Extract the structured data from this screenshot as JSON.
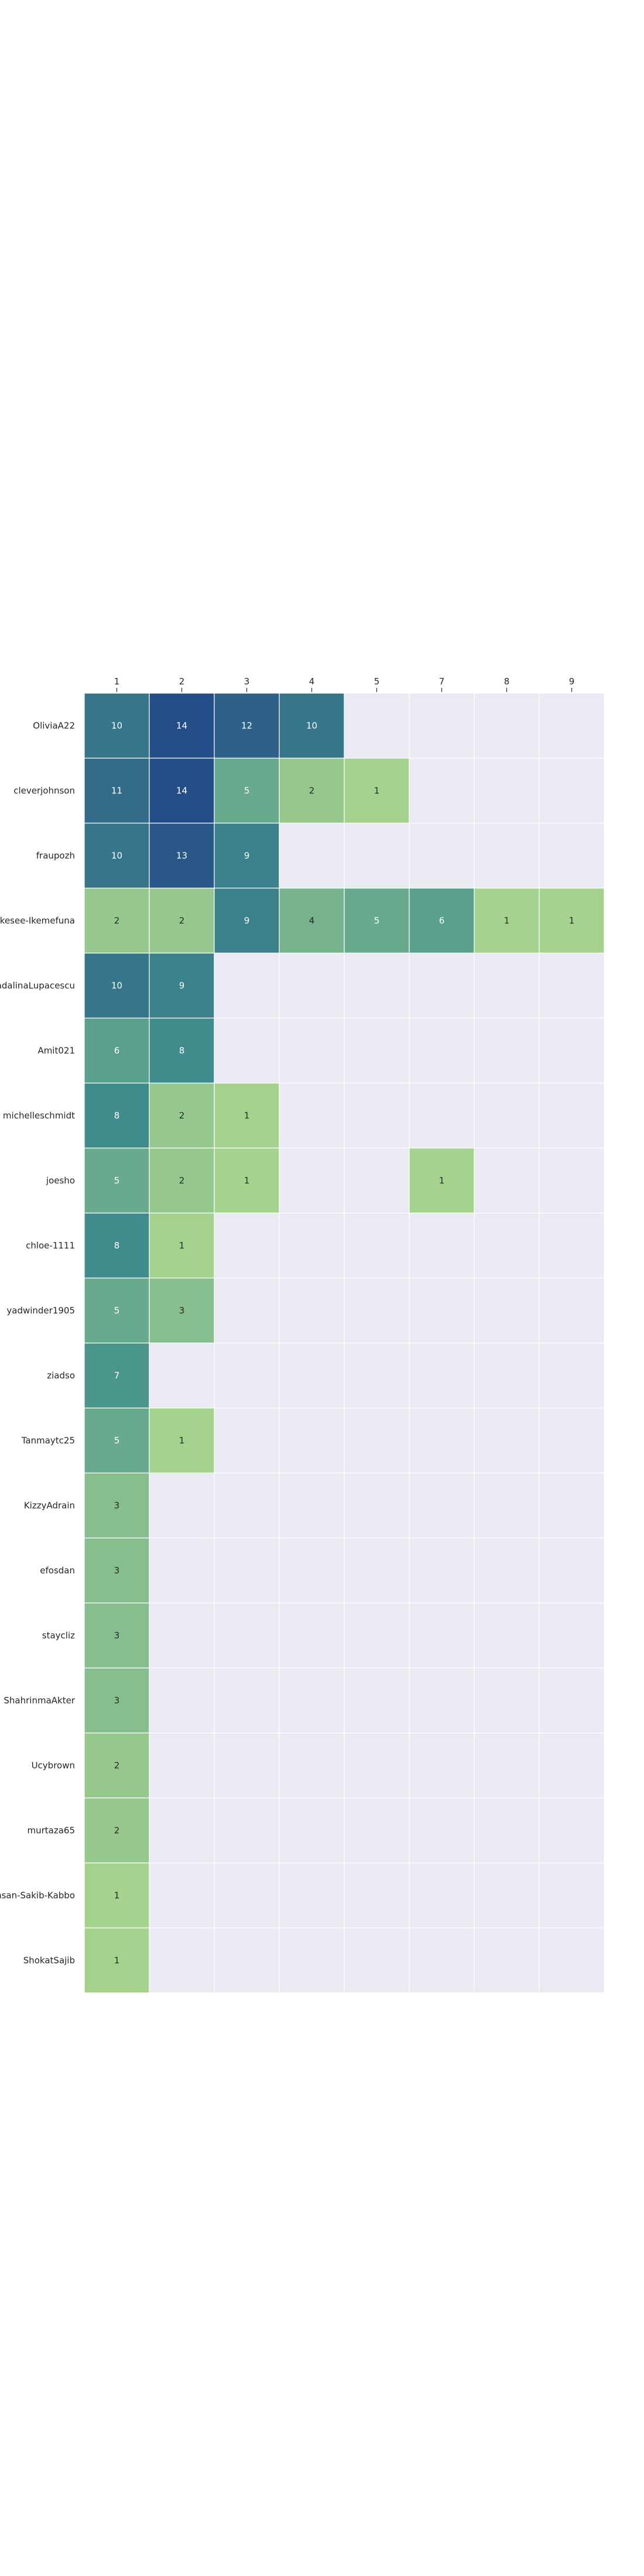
{
  "chart_data": {
    "type": "heatmap",
    "title": "",
    "xlabel": "",
    "ylabel": "",
    "x_tick_position": "top",
    "grid": true,
    "colormap": "crest",
    "empty_cell_color": "#EAEAF2",
    "grid_line_color": "#FFFFFF",
    "x_categories": [
      "1",
      "2",
      "3",
      "4",
      "5",
      "7",
      "8",
      "9"
    ],
    "y_categories": [
      "OliviaA22",
      "cleverjohnson",
      "fraupozh",
      "Ikesee-Ikemefuna",
      "MadalinaLupacescu",
      "Amit021",
      "michelleschmidt",
      "joesho",
      "chloe-1111",
      "yadwinder1905",
      "ziadso",
      "Tanmaytc25",
      "KizzyAdrain",
      "efosdan",
      "staycliz",
      "ShahrinmaAkter",
      "Ucybrown",
      "murtaza65",
      "Ahsan-Sakib-Kabbo",
      "ShokatSajib"
    ],
    "values": [
      [
        10,
        14,
        12,
        10,
        null,
        null,
        null,
        null
      ],
      [
        11,
        14,
        5,
        2,
        1,
        null,
        null,
        null
      ],
      [
        10,
        13,
        9,
        null,
        null,
        null,
        null,
        null
      ],
      [
        2,
        2,
        9,
        4,
        5,
        6,
        1,
        1
      ],
      [
        10,
        9,
        null,
        null,
        null,
        null,
        null,
        null
      ],
      [
        6,
        8,
        null,
        null,
        null,
        null,
        null,
        null
      ],
      [
        8,
        2,
        1,
        null,
        null,
        null,
        null,
        null
      ],
      [
        5,
        2,
        1,
        null,
        null,
        1,
        null,
        null
      ],
      [
        8,
        1,
        null,
        null,
        null,
        null,
        null,
        null
      ],
      [
        5,
        3,
        null,
        null,
        null,
        null,
        null,
        null
      ],
      [
        7,
        null,
        null,
        null,
        null,
        null,
        null,
        null
      ],
      [
        5,
        1,
        null,
        null,
        null,
        null,
        null,
        null
      ],
      [
        3,
        null,
        null,
        null,
        null,
        null,
        null,
        null
      ],
      [
        3,
        null,
        null,
        null,
        null,
        null,
        null,
        null
      ],
      [
        3,
        null,
        null,
        null,
        null,
        null,
        null,
        null
      ],
      [
        3,
        null,
        null,
        null,
        null,
        null,
        null,
        null
      ],
      [
        2,
        null,
        null,
        null,
        null,
        null,
        null,
        null
      ],
      [
        2,
        null,
        null,
        null,
        null,
        null,
        null,
        null
      ],
      [
        1,
        null,
        null,
        null,
        null,
        null,
        null,
        null
      ],
      [
        1,
        null,
        null,
        null,
        null,
        null,
        null,
        null
      ]
    ],
    "value_range": [
      1,
      14
    ],
    "color_low": "#A5D28D",
    "color_mid": "#42918D",
    "color_high": "#244C86"
  }
}
